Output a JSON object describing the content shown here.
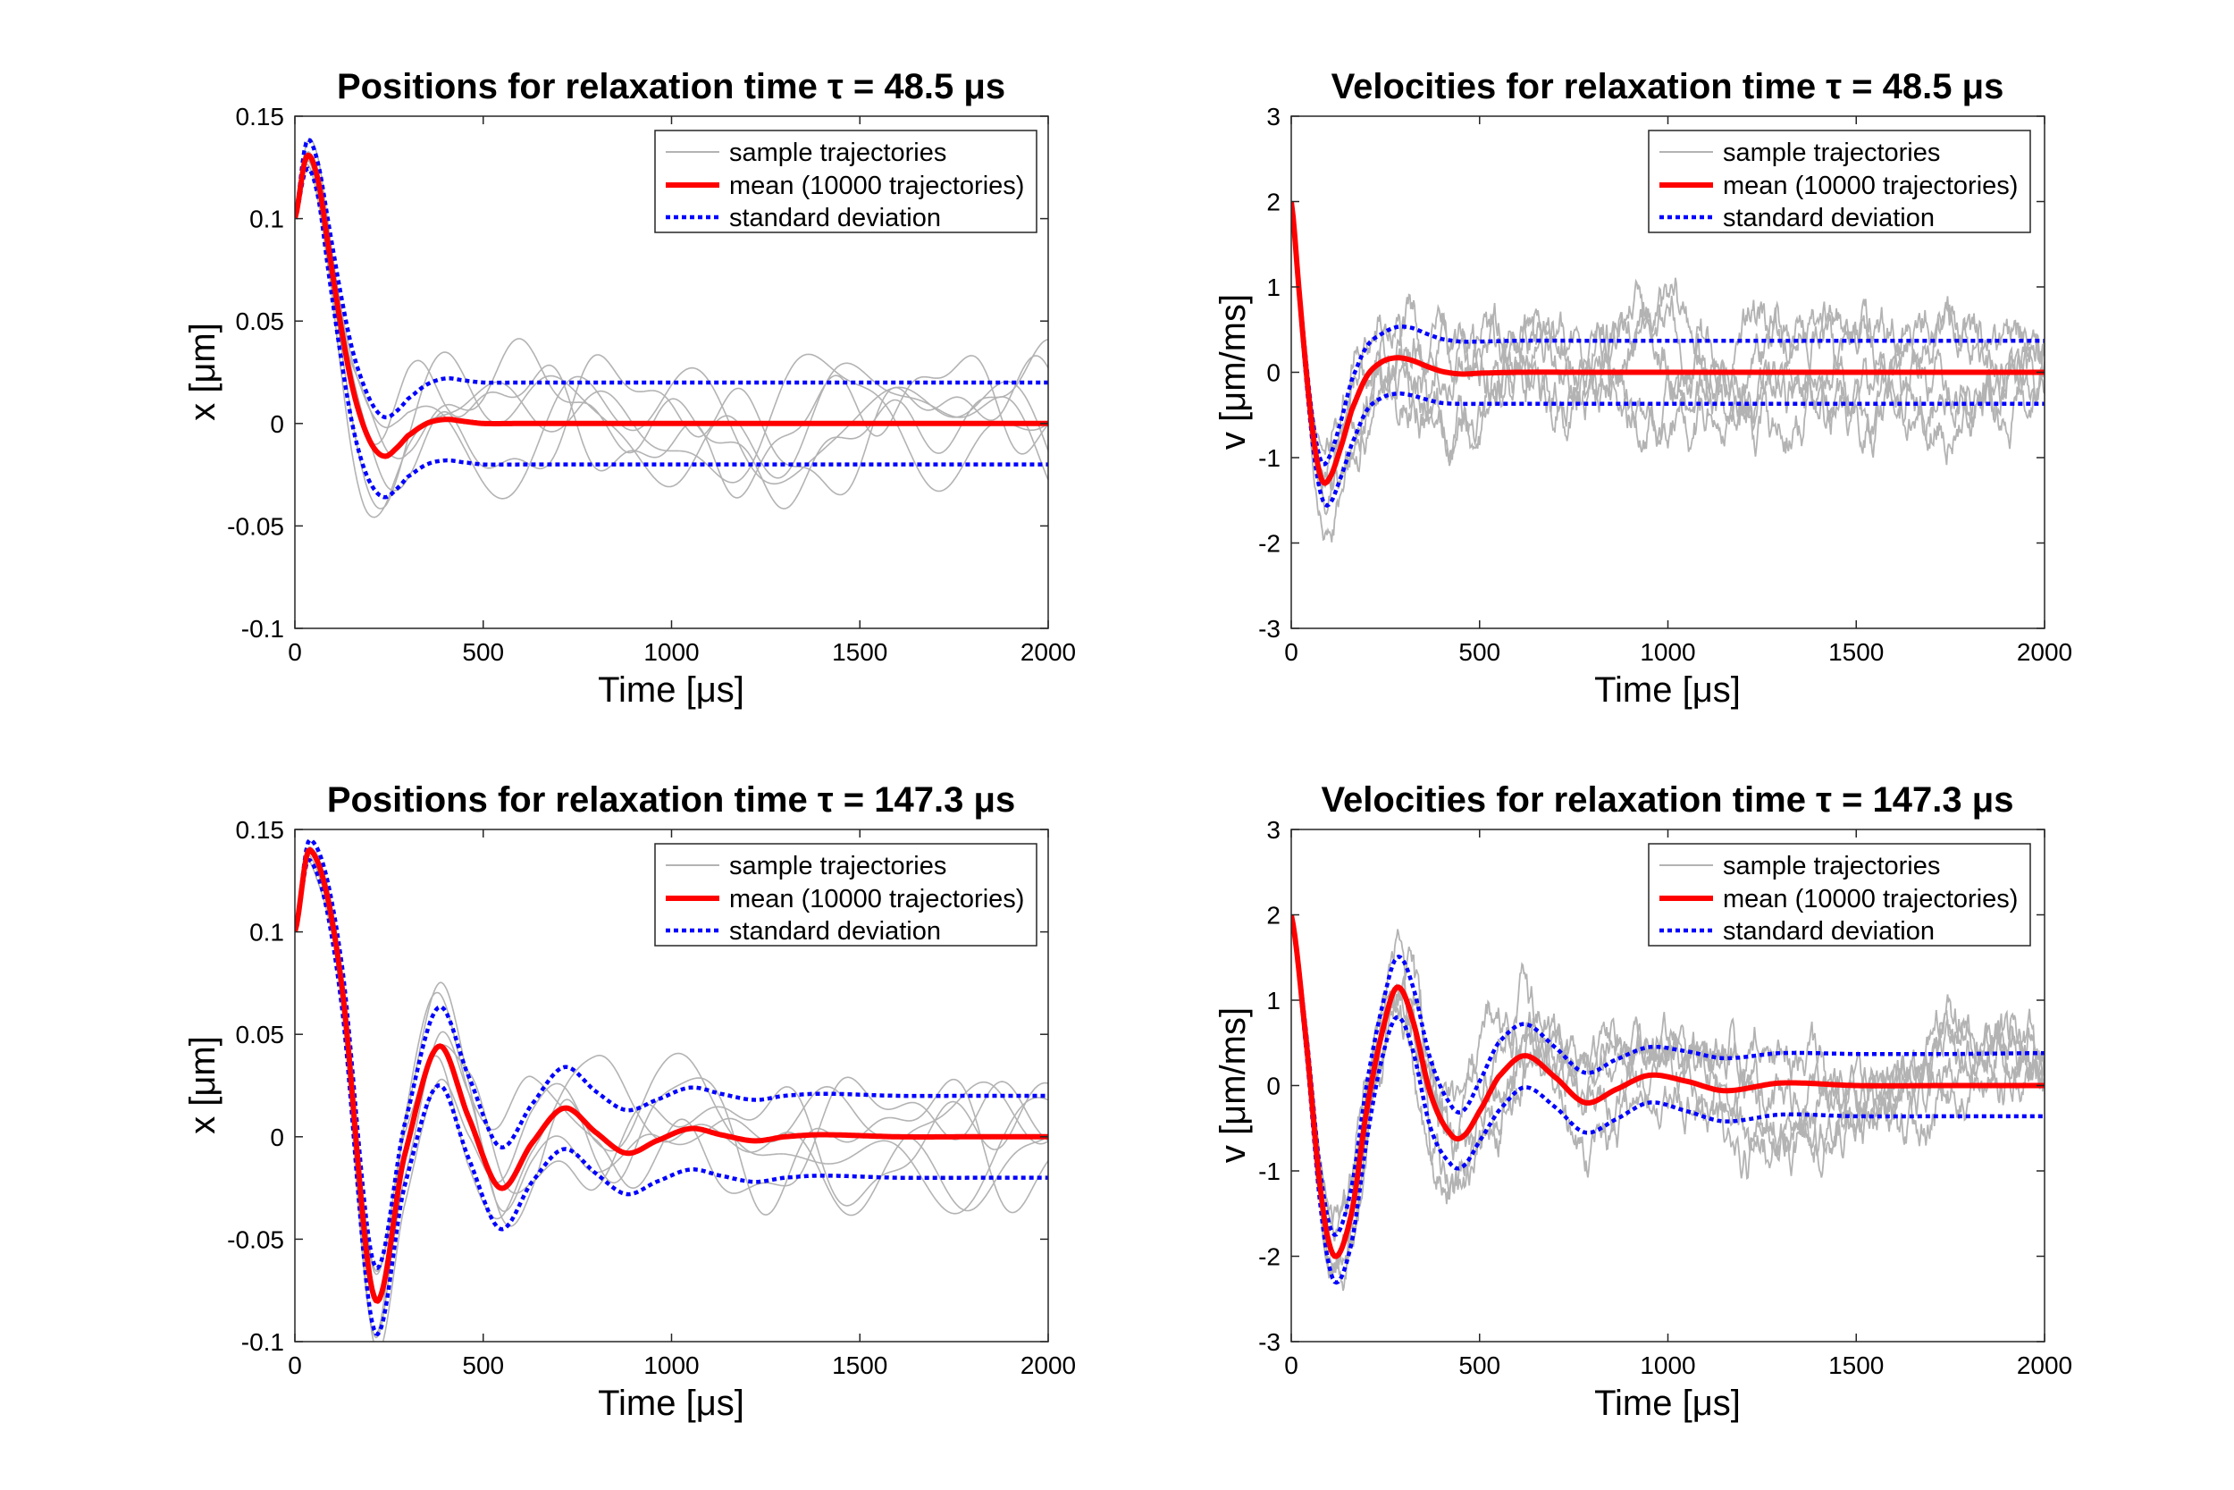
{
  "colors": {
    "mean": "#ff0000",
    "std": "#0000ff",
    "sample": "#b3b3b3",
    "axis": "#262626"
  },
  "legend_labels": {
    "sample": "sample trajectories",
    "mean": "mean (10000 trajectories)",
    "std": "standard deviation"
  },
  "chart_data": [
    {
      "type": "line",
      "title": "Positions for relaxation time τ = 48.5 μs",
      "xlabel": "Time [μs]",
      "ylabel": "x [μm]",
      "xlim": [
        0,
        2000
      ],
      "ylim": [
        -0.1,
        0.15
      ],
      "xticks": [
        0,
        500,
        1000,
        1500,
        2000
      ],
      "yticks": [
        -0.1,
        -0.05,
        0,
        0.05,
        0.1,
        0.15
      ],
      "ytick_labels": [
        "-0.1",
        "-0.05",
        "0",
        "0.05",
        "0.1",
        "0.15"
      ],
      "legend_position": "top-right",
      "series": [
        {
          "name": "mean (10000 trajectories)",
          "x": [
            0,
            30,
            60,
            90,
            120,
            150,
            180,
            210,
            240,
            270,
            300,
            350,
            400,
            450,
            500,
            600,
            700,
            800,
            1000,
            1500,
            2000
          ],
          "values": [
            0.1,
            0.13,
            0.12,
            0.085,
            0.05,
            0.02,
            0.0,
            -0.012,
            -0.016,
            -0.012,
            -0.006,
            0.0,
            0.002,
            0.001,
            0.0,
            0,
            0,
            0,
            0,
            0,
            0
          ]
        },
        {
          "name": "standard deviation (upper)",
          "x": [
            0,
            30,
            60,
            90,
            120,
            150,
            180,
            210,
            240,
            270,
            300,
            350,
            400,
            450,
            500,
            600,
            700,
            800,
            1000,
            1500,
            2000
          ],
          "values": [
            0.1,
            0.137,
            0.128,
            0.097,
            0.065,
            0.038,
            0.02,
            0.008,
            0.003,
            0.006,
            0.012,
            0.019,
            0.022,
            0.021,
            0.02,
            0.02,
            0.02,
            0.02,
            0.02,
            0.02,
            0.02
          ]
        },
        {
          "name": "standard deviation (lower)",
          "x": [
            0,
            30,
            60,
            90,
            120,
            150,
            180,
            210,
            240,
            270,
            300,
            350,
            400,
            450,
            500,
            600,
            700,
            800,
            1000,
            1500,
            2000
          ],
          "values": [
            0.1,
            0.124,
            0.112,
            0.073,
            0.035,
            0.002,
            -0.02,
            -0.032,
            -0.036,
            -0.032,
            -0.026,
            -0.02,
            -0.018,
            -0.019,
            -0.02,
            -0.02,
            -0.02,
            -0.02,
            -0.02,
            -0.02,
            -0.02
          ]
        }
      ],
      "samples": {
        "count": 6,
        "spread": 0.03,
        "noise": "smooth"
      }
    },
    {
      "type": "line",
      "title": "Velocities for relaxation time τ = 48.5 μs",
      "xlabel": "Time [μs]",
      "ylabel": "v [μm/ms]",
      "xlim": [
        0,
        2000
      ],
      "ylim": [
        -3,
        3
      ],
      "xticks": [
        0,
        500,
        1000,
        1500,
        2000
      ],
      "yticks": [
        -3,
        -2,
        -1,
        0,
        1,
        2,
        3
      ],
      "ytick_labels": [
        "-3",
        "-2",
        "-1",
        "0",
        "1",
        "2",
        "3"
      ],
      "legend_position": "top-right",
      "series": [
        {
          "name": "mean (10000 trajectories)",
          "x": [
            0,
            20,
            40,
            60,
            80,
            100,
            130,
            160,
            200,
            240,
            280,
            320,
            360,
            400,
            450,
            500,
            600,
            800,
            1000,
            1500,
            2000
          ],
          "values": [
            2.0,
            1.0,
            0.0,
            -0.8,
            -1.25,
            -1.25,
            -0.9,
            -0.45,
            -0.05,
            0.12,
            0.17,
            0.14,
            0.07,
            0.01,
            -0.02,
            -0.01,
            0,
            0,
            0,
            0,
            0
          ]
        },
        {
          "name": "standard deviation (upper)",
          "x": [
            0,
            20,
            40,
            60,
            80,
            100,
            130,
            160,
            200,
            240,
            280,
            320,
            360,
            400,
            450,
            500,
            600,
            800,
            1000,
            1500,
            2000
          ],
          "values": [
            2.0,
            1.05,
            0.1,
            -0.65,
            -1.05,
            -1.0,
            -0.6,
            -0.1,
            0.3,
            0.45,
            0.53,
            0.52,
            0.45,
            0.39,
            0.36,
            0.36,
            0.37,
            0.37,
            0.37,
            0.37,
            0.37
          ]
        },
        {
          "name": "standard deviation (lower)",
          "x": [
            0,
            20,
            40,
            60,
            80,
            100,
            130,
            160,
            200,
            240,
            280,
            320,
            360,
            400,
            450,
            500,
            600,
            800,
            1000,
            1500,
            2000
          ],
          "values": [
            2.0,
            0.95,
            -0.1,
            -0.95,
            -1.45,
            -1.55,
            -1.25,
            -0.85,
            -0.45,
            -0.3,
            -0.25,
            -0.27,
            -0.32,
            -0.36,
            -0.37,
            -0.37,
            -0.37,
            -0.37,
            -0.37,
            -0.37,
            -0.37
          ]
        }
      ],
      "samples": {
        "count": 5,
        "spread": 0.55,
        "noise": "rough"
      }
    },
    {
      "type": "line",
      "title": "Positions for relaxation time τ = 147.3 μs",
      "xlabel": "Time [μs]",
      "ylabel": "x [μm]",
      "xlim": [
        0,
        2000
      ],
      "ylim": [
        -0.1,
        0.15
      ],
      "xticks": [
        0,
        500,
        1000,
        1500,
        2000
      ],
      "yticks": [
        -0.1,
        -0.05,
        0,
        0.05,
        0.1,
        0.15
      ],
      "ytick_labels": [
        "-0.1",
        "-0.05",
        "0",
        "0.05",
        "0.1",
        "0.15"
      ],
      "legend_position": "top-right",
      "series": [
        {
          "name": "mean (10000 trajectories)",
          "x": [
            0,
            40,
            120,
            210,
            290,
            380,
            460,
            545,
            630,
            715,
            800,
            880,
            960,
            1050,
            1130,
            1220,
            1300,
            1400,
            1600,
            1800,
            2000
          ],
          "values": [
            0.1,
            0.14,
            0.08,
            -0.078,
            -0.01,
            0.044,
            0.01,
            -0.025,
            -0.003,
            0.014,
            0.002,
            -0.008,
            -0.002,
            0.004,
            0.001,
            -0.002,
            0.0,
            0.001,
            0,
            0,
            0
          ]
        },
        {
          "name": "standard deviation (upper)",
          "x": [
            0,
            40,
            120,
            210,
            290,
            380,
            460,
            545,
            630,
            715,
            800,
            880,
            960,
            1050,
            1130,
            1220,
            1300,
            1400,
            1600,
            1800,
            2000
          ],
          "values": [
            0.1,
            0.145,
            0.09,
            -0.062,
            0.005,
            0.063,
            0.03,
            -0.005,
            0.016,
            0.034,
            0.022,
            0.013,
            0.018,
            0.024,
            0.021,
            0.018,
            0.02,
            0.021,
            0.02,
            0.02,
            0.02
          ]
        },
        {
          "name": "standard deviation (lower)",
          "x": [
            0,
            40,
            120,
            210,
            290,
            380,
            460,
            545,
            630,
            715,
            800,
            880,
            960,
            1050,
            1130,
            1220,
            1300,
            1400,
            1600,
            1800,
            2000
          ],
          "values": [
            0.1,
            0.135,
            0.07,
            -0.094,
            -0.025,
            0.025,
            -0.01,
            -0.045,
            -0.022,
            -0.006,
            -0.018,
            -0.028,
            -0.022,
            -0.016,
            -0.019,
            -0.022,
            -0.02,
            -0.019,
            -0.02,
            -0.02,
            -0.02
          ]
        }
      ],
      "samples": {
        "count": 6,
        "spread": 0.03,
        "noise": "smooth"
      }
    },
    {
      "type": "line",
      "title": "Velocities for relaxation time τ = 147.3 μs",
      "xlabel": "Time [μs]",
      "ylabel": "v [μm/ms]",
      "xlim": [
        0,
        2000
      ],
      "ylim": [
        -3,
        3
      ],
      "xticks": [
        0,
        500,
        1000,
        1500,
        2000
      ],
      "yticks": [
        -3,
        -2,
        -1,
        0,
        1,
        2,
        3
      ],
      "ytick_labels": [
        "-3",
        "-2",
        "-1",
        "0",
        "1",
        "2",
        "3"
      ],
      "legend_position": "top-right",
      "series": [
        {
          "name": "mean (10000 trajectories)",
          "x": [
            0,
            40,
            80,
            115,
            160,
            200,
            240,
            280,
            320,
            370,
            420,
            455,
            500,
            550,
            620,
            700,
            780,
            860,
            950,
            1050,
            1150,
            1300,
            1500,
            1750,
            2000
          ],
          "values": [
            2.0,
            0.5,
            -1.3,
            -2.0,
            -1.5,
            -0.3,
            0.6,
            1.15,
            0.8,
            -0.1,
            -0.55,
            -0.6,
            -0.3,
            0.1,
            0.35,
            0.1,
            -0.2,
            -0.05,
            0.12,
            0.05,
            -0.06,
            0.03,
            0.0,
            0.0,
            0.0
          ]
        },
        {
          "name": "standard deviation (upper)",
          "x": [
            0,
            40,
            80,
            115,
            160,
            200,
            240,
            280,
            320,
            370,
            420,
            455,
            500,
            550,
            620,
            700,
            780,
            860,
            950,
            1050,
            1150,
            1300,
            1500,
            1750,
            2000
          ],
          "values": [
            2.0,
            0.6,
            -1.1,
            -1.75,
            -1.2,
            0.0,
            0.9,
            1.5,
            1.2,
            0.3,
            -0.2,
            -0.3,
            0.05,
            0.5,
            0.72,
            0.45,
            0.15,
            0.3,
            0.45,
            0.4,
            0.32,
            0.38,
            0.37,
            0.37,
            0.38
          ]
        },
        {
          "name": "standard deviation (lower)",
          "x": [
            0,
            40,
            80,
            115,
            160,
            200,
            240,
            280,
            320,
            370,
            420,
            455,
            500,
            550,
            620,
            700,
            780,
            860,
            950,
            1050,
            1150,
            1300,
            1500,
            1750,
            2000
          ],
          "values": [
            2.0,
            0.4,
            -1.5,
            -2.3,
            -1.85,
            -0.65,
            0.3,
            0.8,
            0.45,
            -0.5,
            -0.9,
            -0.95,
            -0.65,
            -0.3,
            -0.02,
            -0.25,
            -0.55,
            -0.4,
            -0.2,
            -0.3,
            -0.42,
            -0.34,
            -0.36,
            -0.36,
            -0.36
          ]
        }
      ],
      "samples": {
        "count": 5,
        "spread": 0.45,
        "noise": "rough"
      }
    }
  ]
}
